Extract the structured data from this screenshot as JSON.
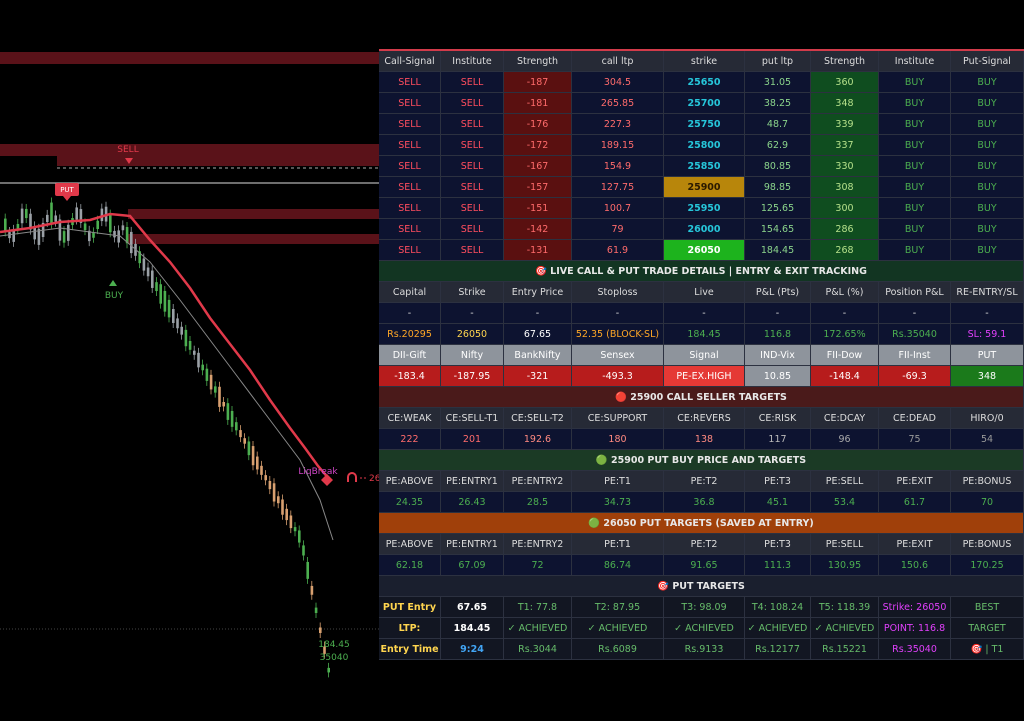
{
  "chart_labels": {
    "sell": "SELL",
    "put": "PUT",
    "buy": "BUY",
    "liq": "LiqBreak",
    "price_tag": "26",
    "last_price": "184.45",
    "last_oi": "35040"
  },
  "panel": {
    "rows": [
      [
        "Call-Signal",
        "Institute",
        "Strength",
        "call ltp",
        "strike",
        "put ltp",
        "Strength",
        "Institute",
        "Put-Signal"
      ],
      [
        "SELL",
        "SELL",
        "-187",
        "304.5",
        "25650",
        "31.05",
        "360",
        "BUY",
        "BUY"
      ],
      [
        "SELL",
        "SELL",
        "-181",
        "265.85",
        "25700",
        "38.25",
        "348",
        "BUY",
        "BUY"
      ],
      [
        "SELL",
        "SELL",
        "-176",
        "227.3",
        "25750",
        "48.7",
        "339",
        "BUY",
        "BUY"
      ],
      [
        "SELL",
        "SELL",
        "-172",
        "189.15",
        "25800",
        "62.9",
        "337",
        "BUY",
        "BUY"
      ],
      [
        "SELL",
        "SELL",
        "-167",
        "154.9",
        "25850",
        "80.85",
        "330",
        "BUY",
        "BUY"
      ],
      [
        "SELL",
        "SELL",
        "-157",
        "127.75",
        "25900",
        "98.85",
        "308",
        "BUY",
        "BUY"
      ],
      [
        "SELL",
        "SELL",
        "-151",
        "100.7",
        "25950",
        "125.65",
        "300",
        "BUY",
        "BUY"
      ],
      [
        "SELL",
        "SELL",
        "-142",
        "79",
        "26000",
        "154.65",
        "286",
        "BUY",
        "BUY"
      ],
      [
        "SELL",
        "SELL",
        "-131",
        "61.9",
        "26050",
        "184.45",
        "268",
        "BUY",
        "BUY"
      ],
      [
        "🎯  LIVE CALL & PUT TRADE DETAILS | ENTRY & EXIT TRACKING"
      ],
      [
        "Capital",
        "Strike",
        "Entry Price",
        "Stoploss",
        "Live",
        "P&L (Pts)",
        "P&L (%)",
        "Position P&L",
        "RE-ENTRY/SL"
      ],
      [
        "-",
        "-",
        "-",
        "-",
        "-",
        "-",
        "-",
        "-",
        "-"
      ],
      [
        "Rs.20295",
        "26050",
        "67.65",
        "52.35 (BLOCK-SL)",
        "184.45",
        "116.8",
        "172.65%",
        "Rs.35040",
        "SL: 59.1"
      ],
      [
        "DII-Gift",
        "Nifty",
        "BankNifty",
        "Sensex",
        "Signal",
        "IND-Vix",
        "FII-Dow",
        "FII-Inst",
        "PUT"
      ],
      [
        "-183.4",
        "-187.95",
        "-321",
        "-493.3",
        "PE-EX.HIGH",
        "10.85",
        "-148.4",
        "-69.3",
        "348"
      ],
      [
        "🔴 25900 CALL SELLER TARGETS"
      ],
      [
        "CE:WEAK",
        "CE:SELL-T1",
        "CE:SELL-T2",
        "CE:SUPPORT",
        "CE:REVERS",
        "CE:RISK",
        "CE:DCAY",
        "CE:DEAD",
        "HIRO/0"
      ],
      [
        "222",
        "201",
        "192.6",
        "180",
        "138",
        "117",
        "96",
        "75",
        "54"
      ],
      [
        "🟢 25900 PUT BUY PRICE AND TARGETS"
      ],
      [
        "PE:ABOVE",
        "PE:ENTRY1",
        "PE:ENTRY2",
        "PE:T1",
        "PE:T2",
        "PE:T3",
        "PE:SELL",
        "PE:EXIT",
        "PE:BONUS"
      ],
      [
        "24.35",
        "26.43",
        "28.5",
        "34.73",
        "36.8",
        "45.1",
        "53.4",
        "61.7",
        "70"
      ],
      [
        "🟢 26050 PUT TARGETS (SAVED AT ENTRY)"
      ],
      [
        "PE:ABOVE",
        "PE:ENTRY1",
        "PE:ENTRY2",
        "PE:T1",
        "PE:T2",
        "PE:T3",
        "PE:SELL",
        "PE:EXIT",
        "PE:BONUS"
      ],
      [
        "62.18",
        "67.09",
        "72",
        "86.74",
        "91.65",
        "111.3",
        "130.95",
        "150.6",
        "170.25"
      ],
      [
        "🎯  PUT TARGETS"
      ],
      [
        "PUT Entry",
        "67.65",
        "T1: 77.8",
        "T2: 87.95",
        "T3: 98.09",
        "T4: 108.24",
        "T5: 118.39",
        "Strike: 26050",
        "BEST"
      ],
      [
        "LTP:",
        "184.45",
        "✓ ACHIEVED",
        "✓ ACHIEVED",
        "✓ ACHIEVED",
        "✓ ACHIEVED",
        "✓ ACHIEVED",
        "POINT: 116.8",
        "TARGET"
      ],
      [
        "Entry Time",
        "9:24",
        "Rs.3044",
        "Rs.6089",
        "Rs.9133",
        "Rs.12177",
        "Rs.15221",
        "Rs.35040",
        "🎯 | T1"
      ]
    ]
  }
}
